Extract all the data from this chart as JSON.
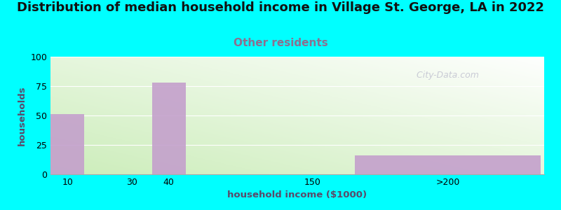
{
  "title": "Distribution of median household income in Village St. George, LA in 2022",
  "subtitle": "Other residents",
  "xlabel": "household income ($1000)",
  "ylabel": "households",
  "background_color": "#00FFFF",
  "bar_color": "#C4A0CC",
  "ylim": [
    0,
    100
  ],
  "yticks": [
    0,
    25,
    50,
    75,
    100
  ],
  "title_fontsize": 13,
  "subtitle_fontsize": 11,
  "subtitle_color": "#8B7090",
  "label_fontsize": 9.5,
  "tick_fontsize": 9,
  "watermark": "  City-Data.com",
  "xlabels": [
    "10",
    "30",
    "40",
    "150",
    ">200"
  ],
  "bar_lefts": [
    0,
    2,
    3,
    7.5,
    9.0
  ],
  "bar_widths": [
    1.0,
    0.8,
    1.0,
    0.5,
    5.5
  ],
  "bar_heights": [
    51,
    0,
    78,
    0,
    16
  ]
}
